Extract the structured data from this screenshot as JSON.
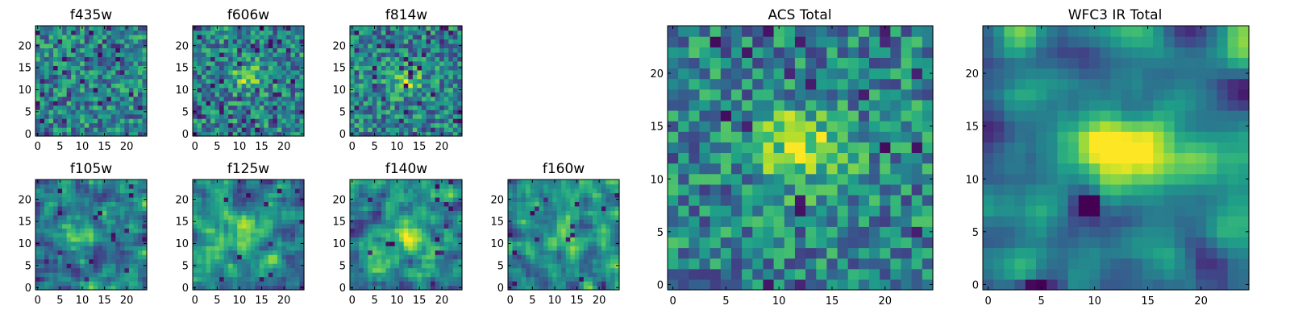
{
  "chart_data": [
    {
      "id": "f435w",
      "type": "heatmap",
      "title": "f435w",
      "grid_size": 25,
      "xlim": [
        0,
        24
      ],
      "ylim": [
        0,
        24
      ],
      "xticks": [
        0,
        5,
        10,
        15,
        20
      ],
      "yticks": [
        0,
        5,
        10,
        15,
        20
      ],
      "xtick_labels": [
        "0",
        "5",
        "10",
        "15",
        "20"
      ],
      "ytick_labels": [
        "0",
        "5",
        "10",
        "15",
        "20"
      ],
      "colormap": "viridis",
      "grid": false,
      "seed": 11,
      "smooth": 0,
      "blobs": [],
      "dark_spots": 0.06
    },
    {
      "id": "f606w",
      "type": "heatmap",
      "title": "f606w",
      "grid_size": 25,
      "xlim": [
        0,
        24
      ],
      "ylim": [
        0,
        24
      ],
      "xticks": [
        0,
        5,
        10,
        15,
        20
      ],
      "yticks": [
        0,
        5,
        10,
        15,
        20
      ],
      "xtick_labels": [
        "0",
        "5",
        "10",
        "15",
        "20"
      ],
      "ytick_labels": [
        "0",
        "5",
        "10",
        "15",
        "20"
      ],
      "colormap": "viridis",
      "grid": false,
      "seed": 23,
      "smooth": 0,
      "blobs": [
        {
          "x": 12,
          "y": 13,
          "sx": 2.5,
          "sy": 2,
          "amp": 0.35
        }
      ],
      "dark_spots": 0.06
    },
    {
      "id": "f814w",
      "type": "heatmap",
      "title": "f814w",
      "grid_size": 25,
      "xlim": [
        0,
        24
      ],
      "ylim": [
        0,
        24
      ],
      "xticks": [
        0,
        5,
        10,
        15,
        20
      ],
      "yticks": [
        0,
        5,
        10,
        15,
        20
      ],
      "xtick_labels": [
        "0",
        "5",
        "10",
        "15",
        "20"
      ],
      "ytick_labels": [
        "0",
        "5",
        "10",
        "15",
        "20"
      ],
      "colormap": "viridis",
      "grid": false,
      "seed": 37,
      "smooth": 0,
      "blobs": [
        {
          "x": 12,
          "y": 12,
          "sx": 2.5,
          "sy": 2,
          "amp": 0.35
        }
      ],
      "dark_spots": 0.06
    },
    {
      "id": "f105w",
      "type": "heatmap",
      "title": "f105w",
      "grid_size": 25,
      "xlim": [
        0,
        24
      ],
      "ylim": [
        0,
        24
      ],
      "xticks": [
        0,
        5,
        10,
        15,
        20
      ],
      "yticks": [
        0,
        5,
        10,
        15,
        20
      ],
      "xtick_labels": [
        "0",
        "5",
        "10",
        "15",
        "20"
      ],
      "ytick_labels": [
        "0",
        "5",
        "10",
        "15",
        "20"
      ],
      "colormap": "viridis",
      "grid": false,
      "seed": 41,
      "smooth": 1,
      "blobs": [
        {
          "x": 10,
          "y": 13,
          "sx": 3,
          "sy": 2.5,
          "amp": 0.3
        }
      ],
      "dark_spots": 0.02
    },
    {
      "id": "f125w",
      "type": "heatmap",
      "title": "f125w",
      "grid_size": 25,
      "xlim": [
        0,
        24
      ],
      "ylim": [
        0,
        24
      ],
      "xticks": [
        0,
        5,
        10,
        15,
        20
      ],
      "yticks": [
        0,
        5,
        10,
        15,
        20
      ],
      "xtick_labels": [
        "0",
        "5",
        "10",
        "15",
        "20"
      ],
      "ytick_labels": [
        "0",
        "5",
        "10",
        "15",
        "20"
      ],
      "colormap": "viridis",
      "grid": false,
      "seed": 53,
      "smooth": 1,
      "blobs": [
        {
          "x": 11,
          "y": 12,
          "sx": 3,
          "sy": 2.5,
          "amp": 0.3
        }
      ],
      "dark_spots": 0.02
    },
    {
      "id": "f140w",
      "type": "heatmap",
      "title": "f140w",
      "grid_size": 25,
      "xlim": [
        0,
        24
      ],
      "ylim": [
        0,
        24
      ],
      "xticks": [
        0,
        5,
        10,
        15,
        20
      ],
      "yticks": [
        0,
        5,
        10,
        15,
        20
      ],
      "xtick_labels": [
        "0",
        "5",
        "10",
        "15",
        "20"
      ],
      "ytick_labels": [
        "0",
        "5",
        "10",
        "15",
        "20"
      ],
      "colormap": "viridis",
      "grid": false,
      "seed": 67,
      "smooth": 1,
      "blobs": [
        {
          "x": 12,
          "y": 12,
          "sx": 3.5,
          "sy": 3,
          "amp": 0.35
        }
      ],
      "dark_spots": 0.02
    },
    {
      "id": "f160w",
      "type": "heatmap",
      "title": "f160w",
      "grid_size": 25,
      "xlim": [
        0,
        24
      ],
      "ylim": [
        0,
        24
      ],
      "xticks": [
        0,
        5,
        10,
        15,
        20
      ],
      "yticks": [
        0,
        5,
        10,
        15,
        20
      ],
      "xtick_labels": [
        "0",
        "5",
        "10",
        "15",
        "20"
      ],
      "ytick_labels": [
        "0",
        "5",
        "10",
        "15",
        "20"
      ],
      "colormap": "viridis",
      "grid": false,
      "seed": 79,
      "smooth": 1,
      "blobs": [
        {
          "x": 12,
          "y": 12,
          "sx": 3,
          "sy": 3,
          "amp": 0.25
        }
      ],
      "dark_spots": 0.03
    },
    {
      "id": "acs-total",
      "type": "heatmap",
      "title": "ACS Total",
      "grid_size": 25,
      "xlim": [
        0,
        24
      ],
      "ylim": [
        0,
        24
      ],
      "xticks": [
        0,
        5,
        10,
        15,
        20
      ],
      "yticks": [
        0,
        5,
        10,
        15,
        20
      ],
      "xtick_labels": [
        "0",
        "5",
        "10",
        "15",
        "20"
      ],
      "ytick_labels": [
        "0",
        "5",
        "10",
        "15",
        "20"
      ],
      "colormap": "viridis",
      "grid": false,
      "seed": 97,
      "smooth": 0,
      "blobs": [
        {
          "x": 12,
          "y": 13,
          "sx": 3,
          "sy": 2.5,
          "amp": 0.45
        }
      ],
      "dark_spots": 0.035
    },
    {
      "id": "wfc3-ir-total",
      "type": "heatmap",
      "title": "WFC3 IR Total",
      "grid_size": 25,
      "xlim": [
        0,
        24
      ],
      "ylim": [
        0,
        24
      ],
      "xticks": [
        0,
        5,
        10,
        15,
        20
      ],
      "yticks": [
        0,
        5,
        10,
        15,
        20
      ],
      "xtick_labels": [
        "0",
        "5",
        "10",
        "15",
        "20"
      ],
      "ytick_labels": [
        "0",
        "5",
        "10",
        "15",
        "20"
      ],
      "colormap": "viridis",
      "grid": false,
      "seed": 113,
      "smooth": 2,
      "blobs": [
        {
          "x": 12,
          "y": 13,
          "sx": 3,
          "sy": 2,
          "amp": 0.6
        },
        {
          "x": 17,
          "y": 11,
          "sx": 3,
          "sy": 1.5,
          "amp": 0.3
        },
        {
          "x": 9.5,
          "y": 7.5,
          "sx": 0.8,
          "sy": 0.8,
          "amp": -0.7
        },
        {
          "x": 4,
          "y": 0,
          "sx": 1.2,
          "sy": 0.6,
          "amp": -0.6
        }
      ],
      "dark_spots": 0.0
    }
  ]
}
